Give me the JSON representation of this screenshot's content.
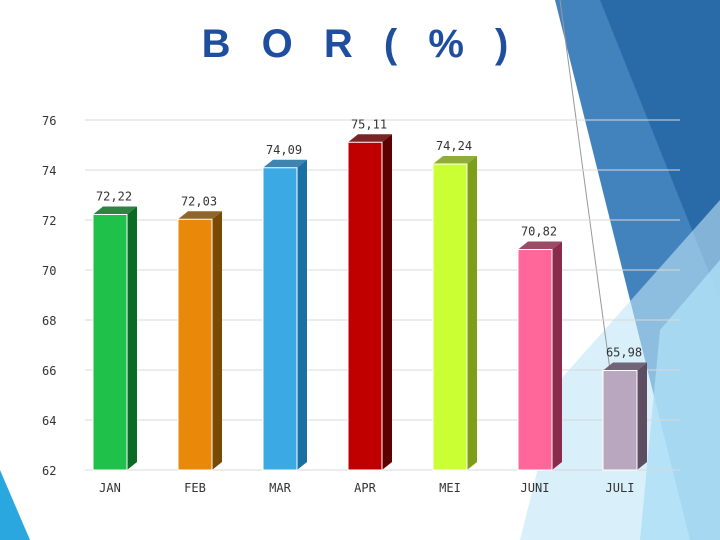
{
  "chart_data": {
    "type": "bar",
    "title": "B O R ( % )",
    "categories": [
      "JAN",
      "FEB",
      "MAR",
      "APR",
      "MEI",
      "JUNI",
      "JULI"
    ],
    "values": [
      72.22,
      72.03,
      74.09,
      75.11,
      74.24,
      70.82,
      65.98
    ],
    "data_labels": [
      "72,22",
      "72,03",
      "74,09",
      "75,11",
      "74,24",
      "70,82",
      "65,98"
    ],
    "y_ticks": [
      "62",
      "64",
      "66",
      "68",
      "70",
      "72",
      "74",
      "76"
    ],
    "xlabel": "",
    "ylabel": "",
    "ylim": [
      62,
      76
    ],
    "grid": true,
    "colors": [
      "#1fc14a",
      "#e8890a",
      "#3aa9e4",
      "#c00000",
      "#c9ff33",
      "#ff6699",
      "#b9a7bf"
    ],
    "side_colors": [
      "#0a6b24",
      "#7a4a05",
      "#1b6fa3",
      "#5e0000",
      "#7d9e16",
      "#8a2b4b",
      "#5e4e62"
    ]
  }
}
